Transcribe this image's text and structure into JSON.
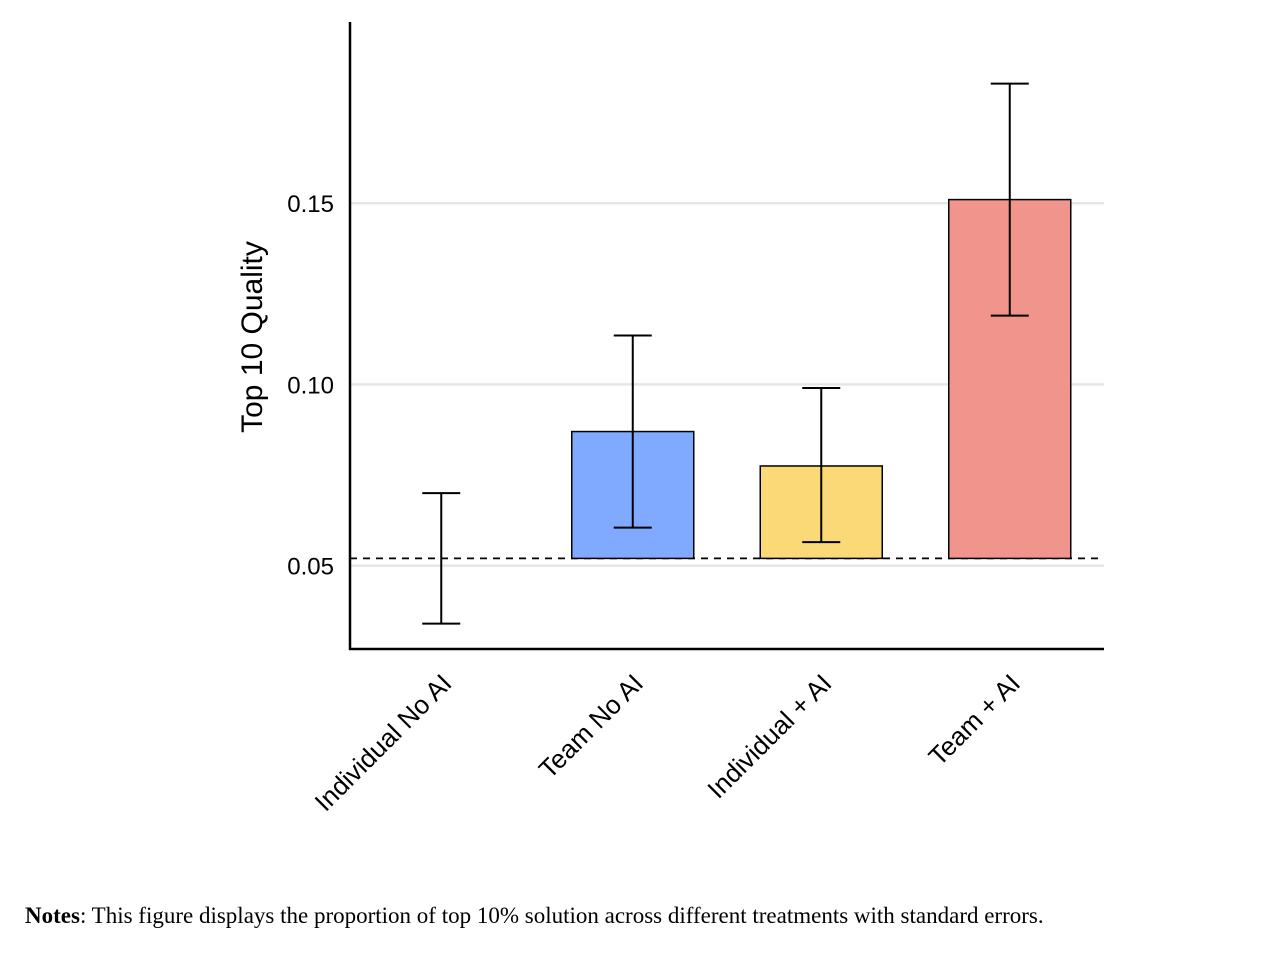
{
  "chart_data": {
    "type": "bar",
    "title": "",
    "xlabel": "",
    "ylabel": "Top 10 Quality",
    "categories": [
      "Individual No AI",
      "Team No AI",
      "Individual + AI",
      "Team + AI"
    ],
    "values": [
      0.052,
      0.087,
      0.0775,
      0.151
    ],
    "error_low": [
      0.034,
      0.0605,
      0.0565,
      0.119
    ],
    "error_high": [
      0.07,
      0.1135,
      0.099,
      0.183
    ],
    "baseline": 0.052,
    "ylim": [
      0.027,
      0.2
    ],
    "yticks": [
      0.05,
      0.1,
      0.15
    ],
    "ytick_labels": [
      "0.05",
      "0.10",
      "0.15"
    ],
    "grid": true,
    "colors": [
      "#ffffff",
      "#7faaff",
      "#fcd977",
      "#f1958c"
    ]
  },
  "notes": {
    "label": "Notes",
    "text": ": This figure displays the proportion of top 10% solution across different treatments with standard errors."
  }
}
